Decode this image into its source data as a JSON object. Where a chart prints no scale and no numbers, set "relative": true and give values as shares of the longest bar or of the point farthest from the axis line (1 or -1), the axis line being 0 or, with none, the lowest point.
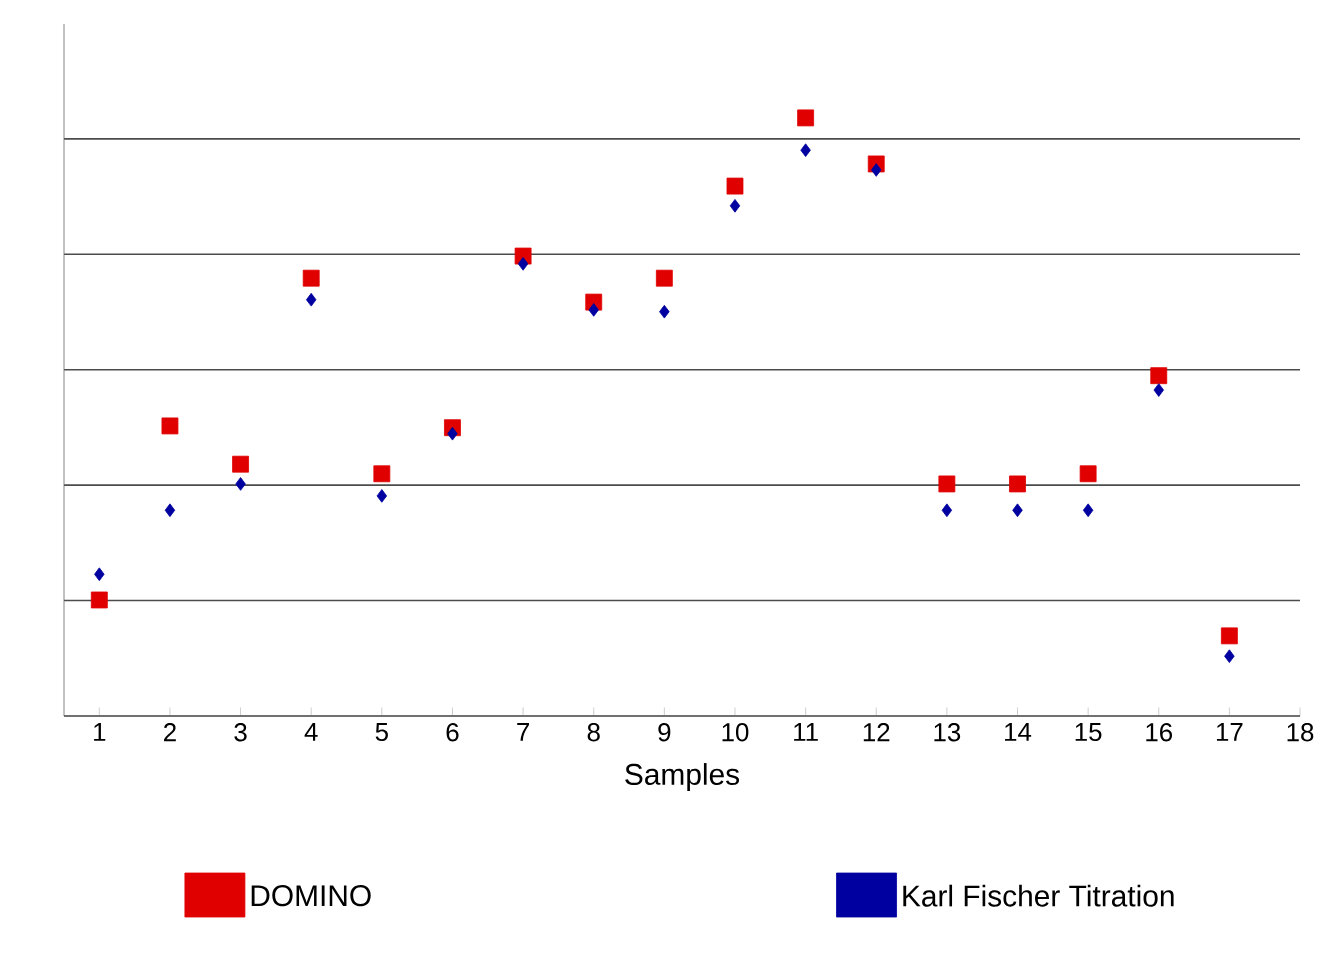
{
  "chart_data": {
    "type": "scatter",
    "relative": true,
    "xlabel": "Samples",
    "x": [
      1,
      2,
      3,
      4,
      5,
      6,
      7,
      8,
      9,
      10,
      11,
      12,
      13,
      14,
      15,
      16,
      17
    ],
    "xlim": [
      0.5,
      18
    ],
    "xticks": [
      1,
      2,
      3,
      4,
      5,
      6,
      7,
      8,
      9,
      10,
      11,
      12,
      13,
      14,
      15,
      16,
      17,
      18
    ],
    "grid": "y",
    "legend": "bottom",
    "series": [
      {
        "name": "DOMINO",
        "color": "#e00000",
        "marker": "square",
        "values": [
          0.194,
          0.485,
          0.421,
          0.732,
          0.405,
          0.482,
          0.769,
          0.692,
          0.732,
          0.886,
          1,
          0.923,
          0.388,
          0.388,
          0.405,
          0.569,
          0.134
        ]
      },
      {
        "name": "Karl Fischer Titration",
        "color": "#0000a0",
        "marker": "diamond",
        "values": [
          0.237,
          0.344,
          0.388,
          0.696,
          0.368,
          0.472,
          0.756,
          0.679,
          0.676,
          0.853,
          0.946,
          0.913,
          0.344,
          0.344,
          0.344,
          0.545,
          0.1
        ]
      }
    ]
  }
}
